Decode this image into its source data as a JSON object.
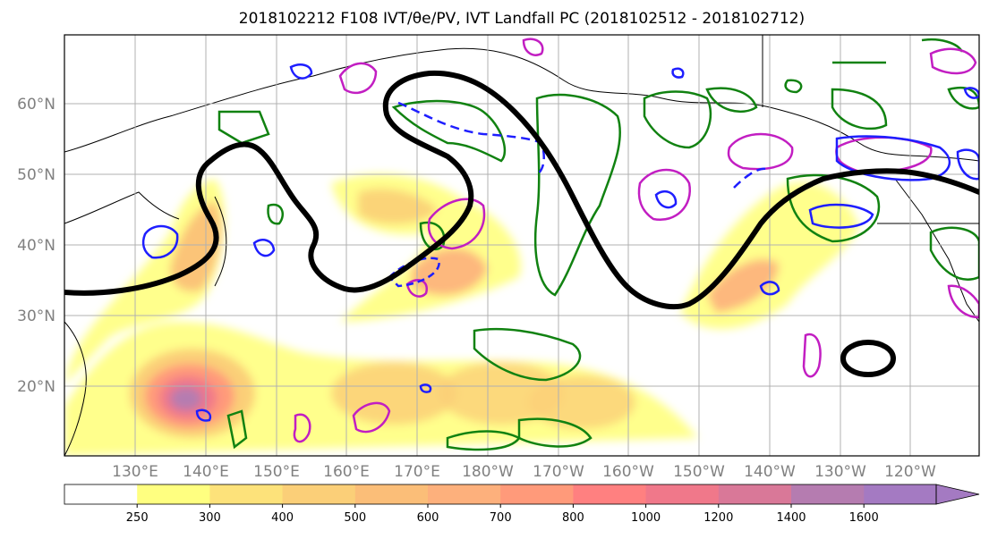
{
  "title": "2018102212 F108 IVT/θe/PV, IVT Landfall PC (2018102512 - 2018102712)",
  "lat_labels": [
    "60°N",
    "50°N",
    "40°N",
    "30°N",
    "20°N"
  ],
  "lon_labels": [
    "130°E",
    "140°E",
    "150°E",
    "160°E",
    "170°E",
    "180°W",
    "170°W",
    "160°W",
    "150°W",
    "140°W",
    "130°W",
    "120°W"
  ],
  "colorbar": {
    "ticks": [
      "250",
      "300",
      "400",
      "500",
      "600",
      "700",
      "800",
      "1000",
      "1200",
      "1400",
      "1600"
    ],
    "colors": [
      "#ffff80",
      "#fde27a",
      "#fbcf78",
      "#fbbe78",
      "#fdb07c",
      "#ff9a7a",
      "#ff8080",
      "#f0788a",
      "#d97898",
      "#b57cb0",
      "#a47ac2"
    ],
    "extend": "max"
  },
  "legend_colors": {
    "ivt_fill": "#fcd36a",
    "contour_black": "#000000",
    "contour_green": "#118211",
    "contour_magenta": "#c21ec2",
    "contour_blue": "#1e1eff",
    "grid": "#b0b0b0"
  }
}
